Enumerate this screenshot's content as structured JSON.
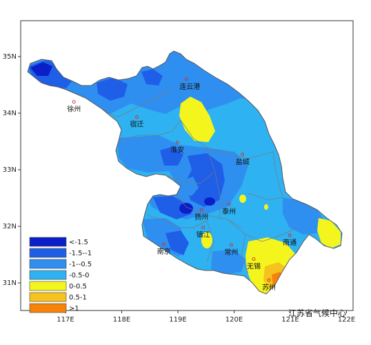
{
  "axes": {
    "x_ticks": [
      "117E",
      "118E",
      "119E",
      "120E",
      "121E",
      "122E"
    ],
    "y_ticks": [
      "35N",
      "34N",
      "33N",
      "32N",
      "31N"
    ]
  },
  "colors": {
    "lt_-1.5": "#0a1fc8",
    "-1.5_-1": "#1f5fe8",
    "-1_-0.5": "#2f8ff0",
    "-0.5_0": "#2eb2f2",
    "0_0.5": "#f5f51e",
    "0.5_1": "#f5c21e",
    "gt_1": "#f5820a",
    "boundary": "#7a7a7a",
    "city_marker": "#d12a2a"
  },
  "legend": [
    {
      "label": "<-1.5",
      "color": "#0a1fc8"
    },
    {
      "label": "-1.5--1",
      "color": "#1f5fe8"
    },
    {
      "label": "-1--0.5",
      "color": "#2f8ff0"
    },
    {
      "label": "-0.5-0",
      "color": "#2eb2f2"
    },
    {
      "label": "0-0.5",
      "color": "#f5f51e"
    },
    {
      "label": "0.5-1",
      "color": "#f5c21e"
    },
    {
      "label": ">1",
      "color": "#f5820a"
    }
  ],
  "cities": [
    {
      "name": "徐州",
      "lon": 117.15,
      "lat": 34.2
    },
    {
      "name": "连云港",
      "lon": 119.15,
      "lat": 34.6
    },
    {
      "name": "宿迁",
      "lon": 118.27,
      "lat": 33.93
    },
    {
      "name": "淮安",
      "lon": 118.99,
      "lat": 33.48
    },
    {
      "name": "盐城",
      "lon": 120.15,
      "lat": 33.27
    },
    {
      "name": "扬州",
      "lon": 119.42,
      "lat": 32.29
    },
    {
      "name": "泰州",
      "lon": 119.91,
      "lat": 32.39
    },
    {
      "name": "镇江",
      "lon": 119.45,
      "lat": 31.98
    },
    {
      "name": "南京",
      "lon": 118.75,
      "lat": 31.68
    },
    {
      "name": "常州",
      "lon": 119.95,
      "lat": 31.67
    },
    {
      "name": "南通",
      "lon": 120.99,
      "lat": 31.84
    },
    {
      "name": "无锡",
      "lon": 120.35,
      "lat": 31.42
    },
    {
      "name": "苏州",
      "lon": 120.62,
      "lat": 31.05
    }
  ],
  "credit": "江苏省气候中心"
}
